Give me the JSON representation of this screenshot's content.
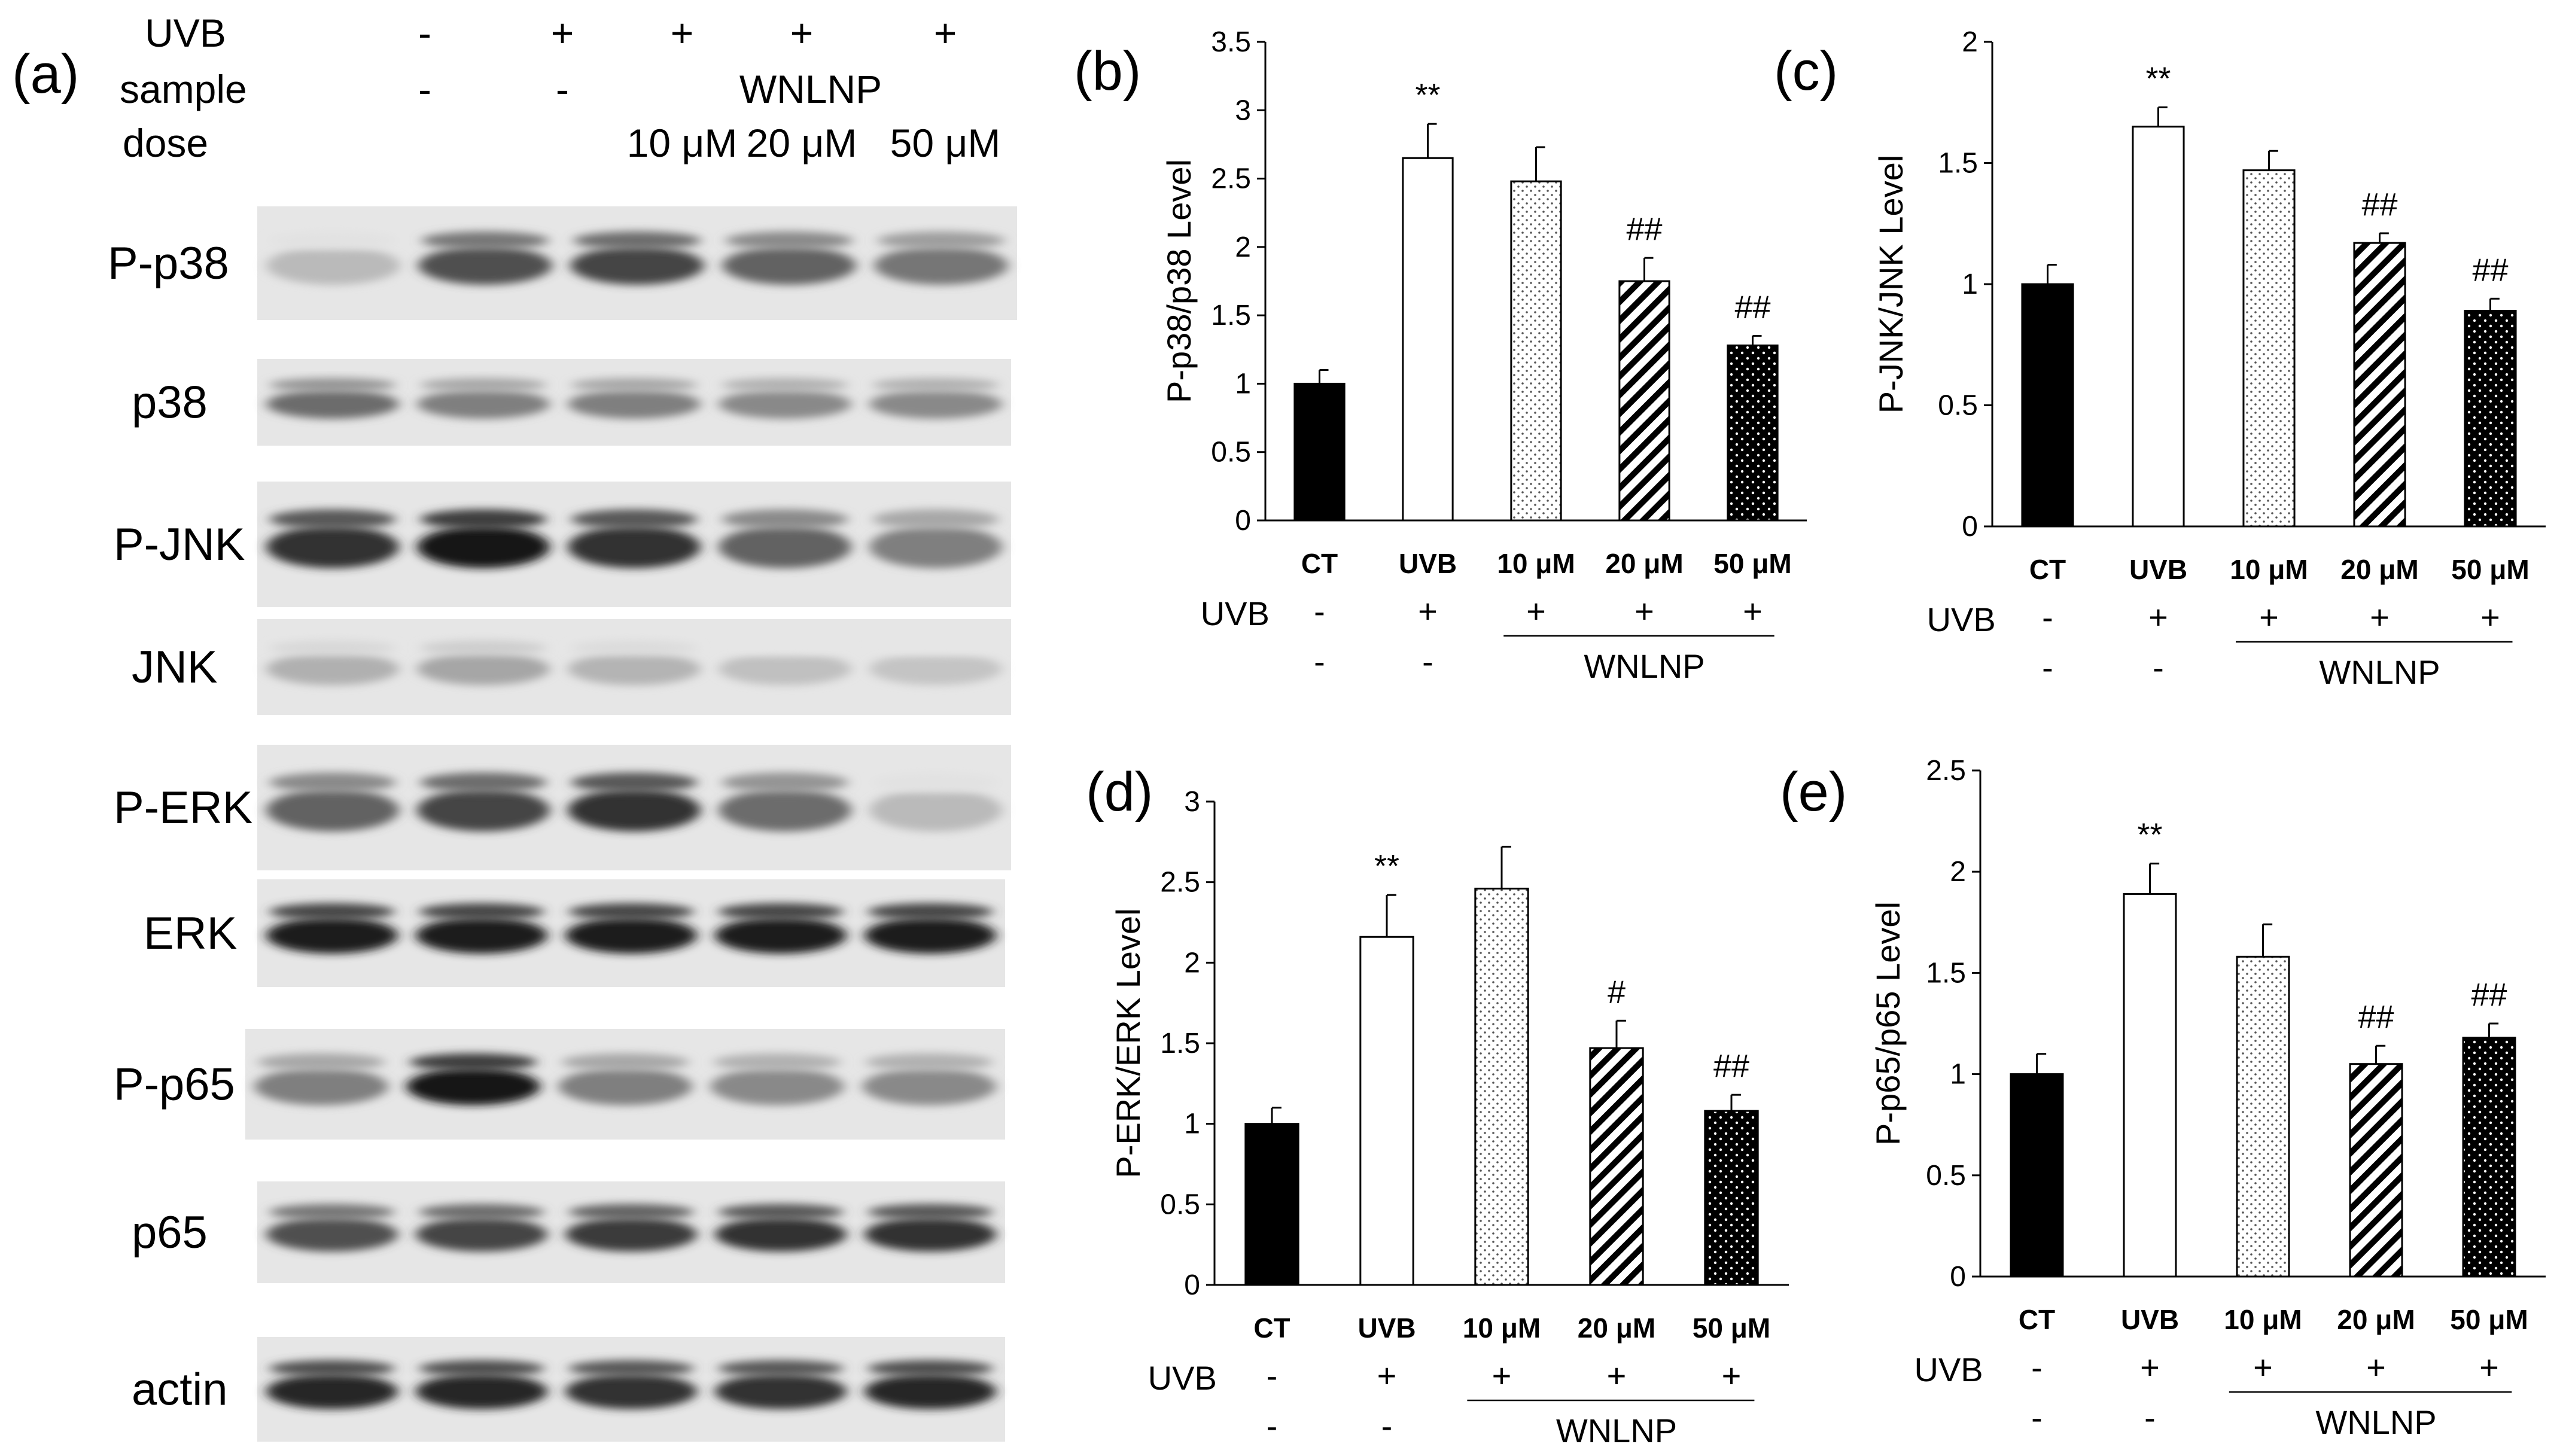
{
  "panel_a": {
    "label": "(a)",
    "rows": [
      {
        "label": "UVB",
        "values": [
          "-",
          "+",
          "+",
          "+",
          "+"
        ]
      },
      {
        "label": "sample",
        "values": [
          "-",
          "-",
          "WNLNP"
        ]
      },
      {
        "label": "dose",
        "values": [
          "10 μM",
          "20 μM",
          "50 μM"
        ]
      }
    ],
    "blots": [
      {
        "label": "P-p38",
        "bands": [
          0.15,
          0.7,
          0.75,
          0.6,
          0.5
        ]
      },
      {
        "label": "p38",
        "bands": [
          0.55,
          0.45,
          0.45,
          0.4,
          0.4
        ]
      },
      {
        "label": "P-JNK",
        "bands": [
          0.85,
          1.0,
          0.85,
          0.6,
          0.45
        ]
      },
      {
        "label": "JNK",
        "bands": [
          0.2,
          0.25,
          0.18,
          0.12,
          0.1
        ]
      },
      {
        "label": "P-ERK",
        "bands": [
          0.6,
          0.75,
          0.85,
          0.55,
          0.15
        ]
      },
      {
        "label": "ERK",
        "bands": [
          0.95,
          0.95,
          0.95,
          0.95,
          0.95
        ]
      },
      {
        "label": "P-p65",
        "bands": [
          0.45,
          1.0,
          0.45,
          0.4,
          0.4
        ]
      },
      {
        "label": "p65",
        "bands": [
          0.7,
          0.75,
          0.8,
          0.85,
          0.85
        ]
      },
      {
        "label": "actin",
        "bands": [
          0.9,
          0.9,
          0.85,
          0.85,
          0.9
        ]
      }
    ]
  },
  "chart_data": [
    {
      "panel": "(b)",
      "type": "bar",
      "ylabel": "P-p38/p38 Level",
      "ylim": [
        0,
        3.5
      ],
      "yticks": [
        "0",
        "0.5",
        "1",
        "1.5",
        "2",
        "2.5",
        "3",
        "3.5"
      ],
      "categories": [
        "CT",
        "UVB",
        "10 μM",
        "20 μM",
        "50 μM"
      ],
      "values": [
        1.0,
        2.65,
        2.48,
        1.75,
        1.28
      ],
      "errors": [
        0.1,
        0.25,
        0.25,
        0.17,
        0.07
      ],
      "significance": [
        "",
        "**",
        "",
        "##",
        "##"
      ],
      "uvb_row": {
        "label": "UVB",
        "values": [
          "-",
          "+",
          "+",
          "+",
          "+"
        ]
      },
      "sample_row": {
        "values": [
          "-",
          "-"
        ],
        "group": "WNLNP"
      }
    },
    {
      "panel": "(c)",
      "type": "bar",
      "ylabel": "P-JNK/JNK Level",
      "ylim": [
        0,
        2
      ],
      "yticks": [
        "0",
        "0.5",
        "1",
        "1.5",
        "2"
      ],
      "categories": [
        "CT",
        "UVB",
        "10 μM",
        "20 μM",
        "50 μM"
      ],
      "values": [
        1.0,
        1.65,
        1.47,
        1.17,
        0.89
      ],
      "errors": [
        0.08,
        0.08,
        0.08,
        0.04,
        0.05
      ],
      "significance": [
        "",
        "**",
        "",
        "##",
        "##"
      ],
      "uvb_row": {
        "label": "UVB",
        "values": [
          "-",
          "+",
          "+",
          "+",
          "+"
        ]
      },
      "sample_row": {
        "values": [
          "-",
          "-"
        ],
        "group": "WNLNP"
      }
    },
    {
      "panel": "(d)",
      "type": "bar",
      "ylabel": "P-ERK/ERK Level",
      "ylim": [
        0,
        3
      ],
      "yticks": [
        "0",
        "0.5",
        "1",
        "1.5",
        "2",
        "2.5",
        "3"
      ],
      "categories": [
        "CT",
        "UVB",
        "10 μM",
        "20 μM",
        "50 μM"
      ],
      "values": [
        1.0,
        2.16,
        2.46,
        1.47,
        1.08
      ],
      "errors": [
        0.1,
        0.26,
        0.26,
        0.17,
        0.1
      ],
      "significance": [
        "",
        "**",
        "",
        "#",
        "##"
      ],
      "uvb_row": {
        "label": "UVB",
        "values": [
          "-",
          "+",
          "+",
          "+",
          "+"
        ]
      },
      "sample_row": {
        "values": [
          "-",
          "-"
        ],
        "group": "WNLNP"
      }
    },
    {
      "panel": "(e)",
      "type": "bar",
      "ylabel": "P-p65/p65 Level",
      "ylim": [
        0,
        2.5
      ],
      "yticks": [
        "0",
        "0.5",
        "1",
        "1.5",
        "2",
        "2.5"
      ],
      "categories": [
        "CT",
        "UVB",
        "10 μM",
        "20 μM",
        "50 μM"
      ],
      "values": [
        1.0,
        1.89,
        1.58,
        1.05,
        1.18
      ],
      "errors": [
        0.1,
        0.15,
        0.16,
        0.09,
        0.07
      ],
      "significance": [
        "",
        "**",
        "",
        "##",
        "##"
      ],
      "uvb_row": {
        "label": "UVB",
        "values": [
          "-",
          "+",
          "+",
          "+",
          "+"
        ]
      },
      "sample_row": {
        "values": [
          "-",
          "-"
        ],
        "group": "WNLNP"
      }
    }
  ],
  "bar_patterns": [
    "solid",
    "open",
    "fine-dots",
    "diagonal-stripes",
    "dots-on-black"
  ],
  "colors": {
    "ink": "#000000",
    "paper": "#ffffff"
  }
}
